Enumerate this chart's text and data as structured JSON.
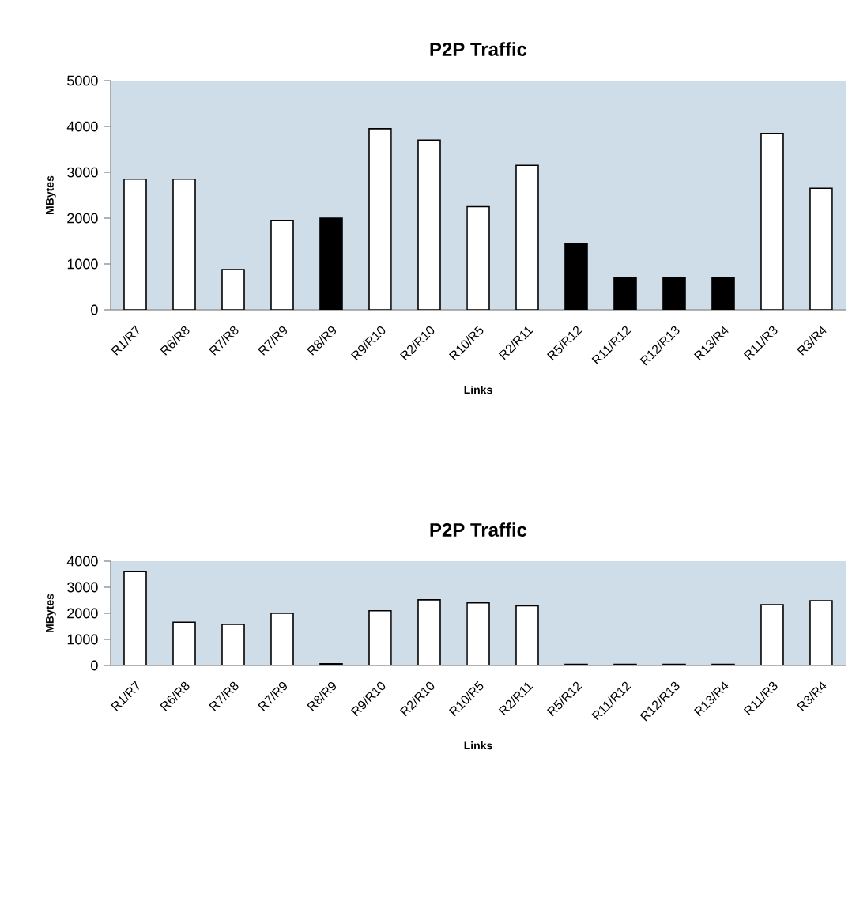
{
  "chart_data": [
    {
      "type": "bar",
      "title": "P2P Traffic",
      "xlabel": "Links",
      "ylabel": "MBytes",
      "categories": [
        "R1/R7",
        "R6/R8",
        "R7/R8",
        "R7/R9",
        "R8/R9",
        "R9/R10",
        "R2/R10",
        "R10/R5",
        "R2/R11",
        "R5/R12",
        "R11/R12",
        "R12/R13",
        "R13/R4",
        "R11/R3",
        "R3/R4"
      ],
      "values": [
        2850,
        2850,
        880,
        1950,
        2000,
        3950,
        3700,
        2250,
        3150,
        1450,
        700,
        700,
        700,
        3850,
        2650
      ],
      "colors": [
        "#ffffff",
        "#ffffff",
        "#ffffff",
        "#ffffff",
        "#000000",
        "#ffffff",
        "#ffffff",
        "#ffffff",
        "#ffffff",
        "#000000",
        "#000000",
        "#000000",
        "#000000",
        "#ffffff",
        "#ffffff"
      ],
      "ylim": [
        0,
        5000
      ],
      "yticks": [
        0,
        1000,
        2000,
        3000,
        4000,
        5000
      ]
    },
    {
      "type": "bar",
      "title": "P2P Traffic",
      "xlabel": "Links",
      "ylabel": "MBytes",
      "categories": [
        "R1/R7",
        "R6/R8",
        "R7/R8",
        "R7/R9",
        "R8/R9",
        "R9/R10",
        "R2/R10",
        "R10/R5",
        "R2/R11",
        "R5/R12",
        "R11/R12",
        "R12/R13",
        "R13/R4",
        "R11/R3",
        "R3/R4"
      ],
      "values": [
        3600,
        1660,
        1580,
        2000,
        70,
        2100,
        2520,
        2400,
        2290,
        40,
        40,
        40,
        40,
        2330,
        2480
      ],
      "colors": [
        "#ffffff",
        "#ffffff",
        "#ffffff",
        "#ffffff",
        "#000000",
        "#ffffff",
        "#ffffff",
        "#ffffff",
        "#ffffff",
        "#000000",
        "#000000",
        "#000000",
        "#000000",
        "#ffffff",
        "#ffffff"
      ],
      "ylim": [
        0,
        4000
      ],
      "yticks": [
        0,
        1000,
        2000,
        3000,
        4000
      ]
    }
  ]
}
